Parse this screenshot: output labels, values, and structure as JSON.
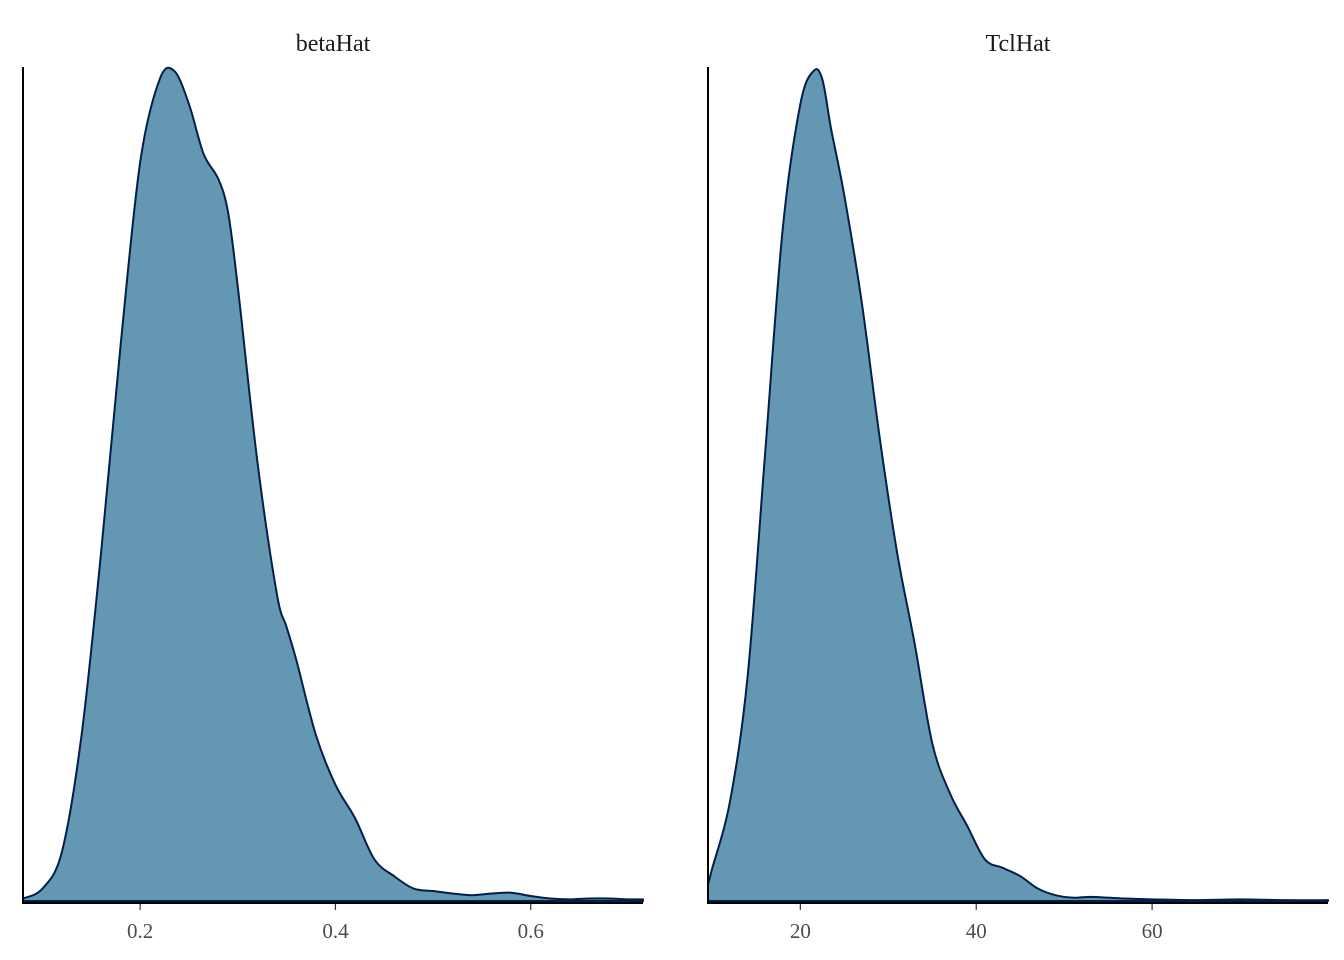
{
  "chart_data": {
    "type": "area",
    "grid": false,
    "legend": "none",
    "fill_color": "#6497b1",
    "line_color": "#011f4b",
    "panels": [
      {
        "title": "betaHat",
        "xlim": [
          0.08,
          0.715
        ],
        "ylim": [
          0,
          1.0
        ],
        "xticks": [
          0.2,
          0.4,
          0.6
        ],
        "xtick_labels": [
          "0.2",
          "0.4",
          "0.6"
        ],
        "density": {
          "x": [
            0.08,
            0.1,
            0.12,
            0.14,
            0.16,
            0.18,
            0.2,
            0.22,
            0.235,
            0.25,
            0.265,
            0.28,
            0.29,
            0.3,
            0.32,
            0.34,
            0.35,
            0.36,
            0.38,
            0.4,
            0.42,
            0.44,
            0.46,
            0.48,
            0.5,
            0.52,
            0.54,
            0.56,
            0.58,
            0.6,
            0.62,
            0.64,
            0.66,
            0.68,
            0.7,
            0.715
          ],
          "y": [
            0.003,
            0.015,
            0.06,
            0.2,
            0.42,
            0.67,
            0.89,
            0.99,
            1.0,
            0.96,
            0.9,
            0.87,
            0.83,
            0.74,
            0.53,
            0.37,
            0.33,
            0.29,
            0.2,
            0.14,
            0.1,
            0.05,
            0.03,
            0.015,
            0.012,
            0.009,
            0.007,
            0.009,
            0.01,
            0.006,
            0.003,
            0.002,
            0.003,
            0.003,
            0.002,
            0.002
          ]
        }
      },
      {
        "title": "TclHat",
        "xlim": [
          9.5,
          80
        ],
        "ylim": [
          0,
          1.0
        ],
        "xticks": [
          20,
          40,
          60
        ],
        "xtick_labels": [
          "20",
          "40",
          "60"
        ],
        "density": {
          "x": [
            9.5,
            10,
            12,
            14,
            16,
            18,
            20,
            21.5,
            22.5,
            23.5,
            25,
            27,
            29,
            31,
            33,
            35,
            37,
            39,
            41,
            43,
            45,
            47,
            49,
            51,
            53,
            55,
            57,
            60,
            65,
            70,
            75,
            80
          ],
          "y": [
            0.02,
            0.04,
            0.12,
            0.27,
            0.54,
            0.81,
            0.96,
            1.0,
            0.99,
            0.93,
            0.85,
            0.72,
            0.56,
            0.42,
            0.31,
            0.19,
            0.13,
            0.09,
            0.05,
            0.04,
            0.03,
            0.015,
            0.007,
            0.004,
            0.005,
            0.004,
            0.003,
            0.002,
            0.001,
            0.002,
            0.001,
            0.001
          ]
        }
      }
    ]
  }
}
